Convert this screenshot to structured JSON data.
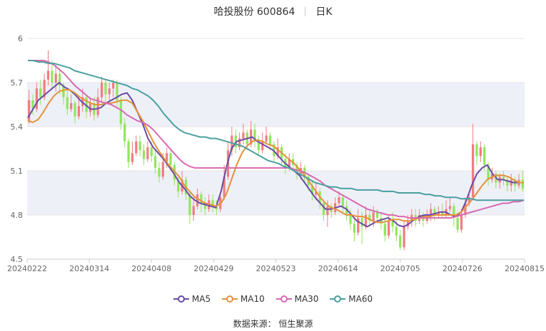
{
  "header": {
    "stock": "哈投股份 600864",
    "period": "日K"
  },
  "source": "数据来源： 恒生聚源",
  "colors": {
    "up": "#f07c82",
    "down": "#91e55e",
    "MA5": "#6c4ba6",
    "MA10": "#e3923a",
    "MA30": "#d869b1",
    "MA60": "#4aa0a0",
    "band": "#eef0f8",
    "grid": "#e5e5e5"
  },
  "chart_data": {
    "type": "candlestick",
    "ylim": [
      4.5,
      6
    ],
    "yticks": [
      "4.5",
      "4.8",
      "5.1",
      "5.4",
      "5.7",
      "6"
    ],
    "xticks": [
      "20240222",
      "20240314",
      "20240408",
      "20240429",
      "20240523",
      "20240614",
      "20240705",
      "20240726",
      "20240815"
    ],
    "grid": true,
    "legend_position": "bottom",
    "candles": [
      [
        5.44,
        5.58,
        5.65,
        5.42
      ],
      [
        5.58,
        5.52,
        5.62,
        5.48
      ],
      [
        5.52,
        5.66,
        5.7,
        5.5
      ],
      [
        5.66,
        5.6,
        5.72,
        5.55
      ],
      [
        5.6,
        5.72,
        5.76,
        5.58
      ],
      [
        5.72,
        5.78,
        5.92,
        5.68
      ],
      [
        5.78,
        5.7,
        5.85,
        5.66
      ],
      [
        5.7,
        5.76,
        5.82,
        5.64
      ],
      [
        5.76,
        5.68,
        5.8,
        5.62
      ],
      [
        5.68,
        5.6,
        5.7,
        5.55
      ],
      [
        5.6,
        5.52,
        5.64,
        5.48
      ],
      [
        5.52,
        5.56,
        5.62,
        5.5
      ],
      [
        5.56,
        5.47,
        5.58,
        5.42
      ],
      [
        5.47,
        5.54,
        5.6,
        5.45
      ],
      [
        5.54,
        5.6,
        5.66,
        5.5
      ],
      [
        5.6,
        5.5,
        5.62,
        5.46
      ],
      [
        5.5,
        5.56,
        5.6,
        5.47
      ],
      [
        5.56,
        5.48,
        5.6,
        5.44
      ],
      [
        5.48,
        5.6,
        5.66,
        5.46
      ],
      [
        5.6,
        5.7,
        5.74,
        5.56
      ],
      [
        5.7,
        5.62,
        5.72,
        5.56
      ],
      [
        5.62,
        5.66,
        5.7,
        5.58
      ],
      [
        5.66,
        5.7,
        5.72,
        5.6
      ],
      [
        5.7,
        5.58,
        5.72,
        5.54
      ],
      [
        5.58,
        5.42,
        5.6,
        5.38
      ],
      [
        5.42,
        5.3,
        5.46,
        5.26
      ],
      [
        5.3,
        5.16,
        5.32,
        5.12
      ],
      [
        5.16,
        5.22,
        5.3,
        5.14
      ],
      [
        5.22,
        5.3,
        5.34,
        5.2
      ],
      [
        5.3,
        5.24,
        5.34,
        5.2
      ],
      [
        5.24,
        5.18,
        5.28,
        5.14
      ],
      [
        5.18,
        5.26,
        5.3,
        5.16
      ],
      [
        5.26,
        5.2,
        5.3,
        5.16
      ],
      [
        5.2,
        5.12,
        5.24,
        5.08
      ],
      [
        5.12,
        5.06,
        5.16,
        5.02
      ],
      [
        5.06,
        5.16,
        5.22,
        5.04
      ],
      [
        5.16,
        5.22,
        5.26,
        5.12
      ],
      [
        5.22,
        5.14,
        5.24,
        5.1
      ],
      [
        5.14,
        5.04,
        5.16,
        5.0
      ],
      [
        5.04,
        4.96,
        5.06,
        4.92
      ],
      [
        4.96,
        5.04,
        5.1,
        4.94
      ],
      [
        5.04,
        4.94,
        5.06,
        4.9
      ],
      [
        4.94,
        4.8,
        4.96,
        4.74
      ],
      [
        4.8,
        4.86,
        4.92,
        4.76
      ],
      [
        4.86,
        4.94,
        4.98,
        4.84
      ],
      [
        4.94,
        4.88,
        4.96,
        4.82
      ],
      [
        4.88,
        4.84,
        4.92,
        4.8
      ],
      [
        4.84,
        4.9,
        4.94,
        4.82
      ],
      [
        4.9,
        4.86,
        4.94,
        4.82
      ],
      [
        4.86,
        4.84,
        4.9,
        4.8
      ],
      [
        4.84,
        4.92,
        4.96,
        4.82
      ],
      [
        4.92,
        5.06,
        5.14,
        4.9
      ],
      [
        5.06,
        5.24,
        5.3,
        5.04
      ],
      [
        5.24,
        5.34,
        5.4,
        5.2
      ],
      [
        5.34,
        5.26,
        5.38,
        5.22
      ],
      [
        5.26,
        5.32,
        5.36,
        5.24
      ],
      [
        5.32,
        5.36,
        5.42,
        5.28
      ],
      [
        5.36,
        5.28,
        5.38,
        5.24
      ],
      [
        5.28,
        5.38,
        5.44,
        5.26
      ],
      [
        5.38,
        5.3,
        5.42,
        5.26
      ],
      [
        5.3,
        5.24,
        5.34,
        5.2
      ],
      [
        5.24,
        5.3,
        5.36,
        5.22
      ],
      [
        5.3,
        5.34,
        5.4,
        5.28
      ],
      [
        5.34,
        5.28,
        5.36,
        5.24
      ],
      [
        5.28,
        5.2,
        5.3,
        5.16
      ],
      [
        5.2,
        5.26,
        5.32,
        5.18
      ],
      [
        5.26,
        5.18,
        5.28,
        5.14
      ],
      [
        5.18,
        5.12,
        5.22,
        5.08
      ],
      [
        5.12,
        5.18,
        5.22,
        5.1
      ],
      [
        5.18,
        5.14,
        5.22,
        5.1
      ],
      [
        5.14,
        5.08,
        5.16,
        5.04
      ],
      [
        5.08,
        5.12,
        5.16,
        5.04
      ],
      [
        5.12,
        5.06,
        5.14,
        5.02
      ],
      [
        5.06,
        5.0,
        5.08,
        4.96
      ],
      [
        5.0,
        4.94,
        5.04,
        4.9
      ],
      [
        4.94,
        4.96,
        5.02,
        4.9
      ],
      [
        4.96,
        4.88,
        4.98,
        4.84
      ],
      [
        4.88,
        4.8,
        4.9,
        4.76
      ],
      [
        4.8,
        4.86,
        4.9,
        4.72
      ],
      [
        4.86,
        4.82,
        4.88,
        4.78
      ],
      [
        4.82,
        4.88,
        4.92,
        4.8
      ],
      [
        4.88,
        4.92,
        4.96,
        4.86
      ],
      [
        4.92,
        4.86,
        4.94,
        4.82
      ],
      [
        4.86,
        4.8,
        4.9,
        4.76
      ],
      [
        4.8,
        4.74,
        4.84,
        4.7
      ],
      [
        4.74,
        4.68,
        4.78,
        4.62
      ],
      [
        4.68,
        4.78,
        4.84,
        4.66
      ],
      [
        4.78,
        4.72,
        4.82,
        4.6
      ],
      [
        4.72,
        4.8,
        4.86,
        4.7
      ],
      [
        4.8,
        4.76,
        4.84,
        4.72
      ],
      [
        4.76,
        4.82,
        4.86,
        4.72
      ],
      [
        4.82,
        4.78,
        4.84,
        4.74
      ],
      [
        4.78,
        4.74,
        4.82,
        4.7
      ],
      [
        4.74,
        4.66,
        4.78,
        4.62
      ],
      [
        4.66,
        4.76,
        4.8,
        4.64
      ],
      [
        4.76,
        4.72,
        4.82,
        4.68
      ],
      [
        4.72,
        4.66,
        4.76,
        4.62
      ],
      [
        4.66,
        4.58,
        4.7,
        4.56
      ],
      [
        4.58,
        4.72,
        4.76,
        4.56
      ],
      [
        4.72,
        4.76,
        4.8,
        4.7
      ],
      [
        4.76,
        4.8,
        4.84,
        4.72
      ],
      [
        4.8,
        4.76,
        4.84,
        4.72
      ],
      [
        4.76,
        4.8,
        4.84,
        4.74
      ],
      [
        4.8,
        4.76,
        4.82,
        4.72
      ],
      [
        4.76,
        4.8,
        4.84,
        4.74
      ],
      [
        4.8,
        4.84,
        4.88,
        4.76
      ],
      [
        4.84,
        4.8,
        4.86,
        4.76
      ],
      [
        4.8,
        4.82,
        4.86,
        4.78
      ],
      [
        4.82,
        4.8,
        4.88,
        4.78
      ],
      [
        4.8,
        4.84,
        4.9,
        4.78
      ],
      [
        4.84,
        4.86,
        4.92,
        4.82
      ],
      [
        4.86,
        4.78,
        4.88,
        4.72
      ],
      [
        4.78,
        4.7,
        4.82,
        4.68
      ],
      [
        4.7,
        4.8,
        4.84,
        4.68
      ],
      [
        4.8,
        4.88,
        4.92,
        4.78
      ],
      [
        4.88,
        4.92,
        4.96,
        4.86
      ],
      [
        4.92,
        5.28,
        5.42,
        4.9
      ],
      [
        5.28,
        5.2,
        5.3,
        5.14
      ],
      [
        5.2,
        5.26,
        5.3,
        5.16
      ],
      [
        5.26,
        5.14,
        5.28,
        5.1
      ],
      [
        5.14,
        5.04,
        5.16,
        5.0
      ],
      [
        5.04,
        5.08,
        5.12,
        5.02
      ],
      [
        5.08,
        5.02,
        5.1,
        4.98
      ],
      [
        5.02,
        5.06,
        5.08,
        4.98
      ],
      [
        5.06,
        5.04,
        5.1,
        5.0
      ],
      [
        5.04,
        5.0,
        5.06,
        4.96
      ],
      [
        5.0,
        5.04,
        5.08,
        4.96
      ],
      [
        5.04,
        5.0,
        5.06,
        4.96
      ],
      [
        5.0,
        5.04,
        5.08,
        4.98
      ],
      [
        5.04,
        4.98,
        5.1,
        4.96
      ]
    ],
    "series": [
      {
        "name": "MA5",
        "values": [
          5.46,
          5.52,
          5.58,
          5.61,
          5.64,
          5.67,
          5.7,
          5.67,
          5.65,
          5.62,
          5.58,
          5.55,
          5.52,
          5.52,
          5.53,
          5.56,
          5.58,
          5.6,
          5.62,
          5.63,
          5.58,
          5.5,
          5.42,
          5.32,
          5.26,
          5.22,
          5.18,
          5.13,
          5.08,
          5.02,
          4.98,
          4.93,
          4.9,
          4.88,
          4.87,
          4.86,
          4.85,
          4.96,
          5.12,
          5.25,
          5.3,
          5.31,
          5.32,
          5.33,
          5.3,
          5.28,
          5.26,
          5.24,
          5.2,
          5.16,
          5.13,
          5.1,
          5.07,
          5.02,
          4.97,
          4.92,
          4.88,
          4.84,
          4.84,
          4.85,
          4.86,
          4.84,
          4.8,
          4.76,
          4.74,
          4.72,
          4.74,
          4.76,
          4.77,
          4.78,
          4.76,
          4.73,
          4.72,
          4.74,
          4.77,
          4.79,
          4.8,
          4.8,
          4.81,
          4.82,
          4.82,
          4.8,
          4.79,
          4.82,
          4.9,
          5.0,
          5.08,
          5.12,
          5.14,
          5.08,
          5.04,
          5.04,
          5.03,
          5.02,
          5.02,
          5.02
        ]
      },
      {
        "name": "MA10",
        "values": [
          5.44,
          5.43,
          5.45,
          5.5,
          5.56,
          5.61,
          5.64,
          5.65,
          5.65,
          5.63,
          5.6,
          5.58,
          5.56,
          5.55,
          5.55,
          5.56,
          5.56,
          5.57,
          5.58,
          5.58,
          5.56,
          5.5,
          5.44,
          5.37,
          5.3,
          5.24,
          5.19,
          5.14,
          5.1,
          5.06,
          5.0,
          4.96,
          4.92,
          4.9,
          4.88,
          4.87,
          4.86,
          4.88,
          4.94,
          5.04,
          5.14,
          5.22,
          5.27,
          5.3,
          5.31,
          5.3,
          5.28,
          5.27,
          5.24,
          5.21,
          5.18,
          5.15,
          5.11,
          5.07,
          5.02,
          4.97,
          4.92,
          4.88,
          4.85,
          4.84,
          4.82,
          4.8,
          4.8,
          4.79,
          4.79,
          4.78,
          4.76,
          4.75,
          4.75,
          4.76,
          4.77,
          4.77,
          4.76,
          4.76,
          4.77,
          4.78,
          4.79,
          4.79,
          4.8,
          4.8,
          4.8,
          4.8,
          4.8,
          4.82,
          4.86,
          4.9,
          4.95,
          5.0,
          5.04,
          5.06,
          5.07,
          5.07,
          5.06,
          5.04,
          5.02,
          5.02
        ]
      },
      {
        "name": "MA30",
        "values": [
          5.85,
          5.85,
          5.85,
          5.85,
          5.84,
          5.82,
          5.79,
          5.76,
          5.72,
          5.68,
          5.65,
          5.62,
          5.59,
          5.58,
          5.57,
          5.56,
          5.55,
          5.53,
          5.51,
          5.48,
          5.46,
          5.44,
          5.43,
          5.41,
          5.38,
          5.34,
          5.3,
          5.26,
          5.22,
          5.18,
          5.15,
          5.13,
          5.12,
          5.12,
          5.12,
          5.12,
          5.12,
          5.12,
          5.12,
          5.12,
          5.12,
          5.12,
          5.12,
          5.12,
          5.12,
          5.12,
          5.12,
          5.12,
          5.12,
          5.12,
          5.12,
          5.11,
          5.1,
          5.09,
          5.07,
          5.05,
          5.03,
          5.0,
          4.98,
          4.96,
          4.94,
          4.92,
          4.9,
          4.88,
          4.86,
          4.84,
          4.83,
          4.82,
          4.81,
          4.8,
          4.8,
          4.79,
          4.79,
          4.78,
          4.78,
          4.78,
          4.78,
          4.78,
          4.78,
          4.78,
          4.78,
          4.78,
          4.79,
          4.8,
          4.81,
          4.82,
          4.83,
          4.84,
          4.85,
          4.86,
          4.87,
          4.88,
          4.88,
          4.89,
          4.89,
          4.9
        ]
      },
      {
        "name": "MA60",
        "values": [
          5.85,
          5.85,
          5.84,
          5.84,
          5.83,
          5.83,
          5.82,
          5.81,
          5.8,
          5.78,
          5.77,
          5.76,
          5.75,
          5.74,
          5.73,
          5.72,
          5.71,
          5.7,
          5.69,
          5.68,
          5.66,
          5.65,
          5.63,
          5.61,
          5.58,
          5.54,
          5.49,
          5.45,
          5.41,
          5.38,
          5.36,
          5.35,
          5.34,
          5.33,
          5.33,
          5.32,
          5.32,
          5.31,
          5.3,
          5.29,
          5.28,
          5.27,
          5.25,
          5.23,
          5.21,
          5.19,
          5.17,
          5.16,
          5.15,
          5.13,
          5.12,
          5.1,
          5.08,
          5.06,
          5.04,
          5.02,
          5.01,
          5.0,
          4.99,
          4.99,
          4.98,
          4.98,
          4.98,
          4.97,
          4.97,
          4.97,
          4.97,
          4.97,
          4.96,
          4.96,
          4.96,
          4.95,
          4.95,
          4.95,
          4.95,
          4.95,
          4.94,
          4.94,
          4.93,
          4.93,
          4.92,
          4.92,
          4.92,
          4.91,
          4.91,
          4.91,
          4.9,
          4.9,
          4.9,
          4.9,
          4.9,
          4.9,
          4.9,
          4.9,
          4.9,
          4.9
        ]
      }
    ]
  }
}
